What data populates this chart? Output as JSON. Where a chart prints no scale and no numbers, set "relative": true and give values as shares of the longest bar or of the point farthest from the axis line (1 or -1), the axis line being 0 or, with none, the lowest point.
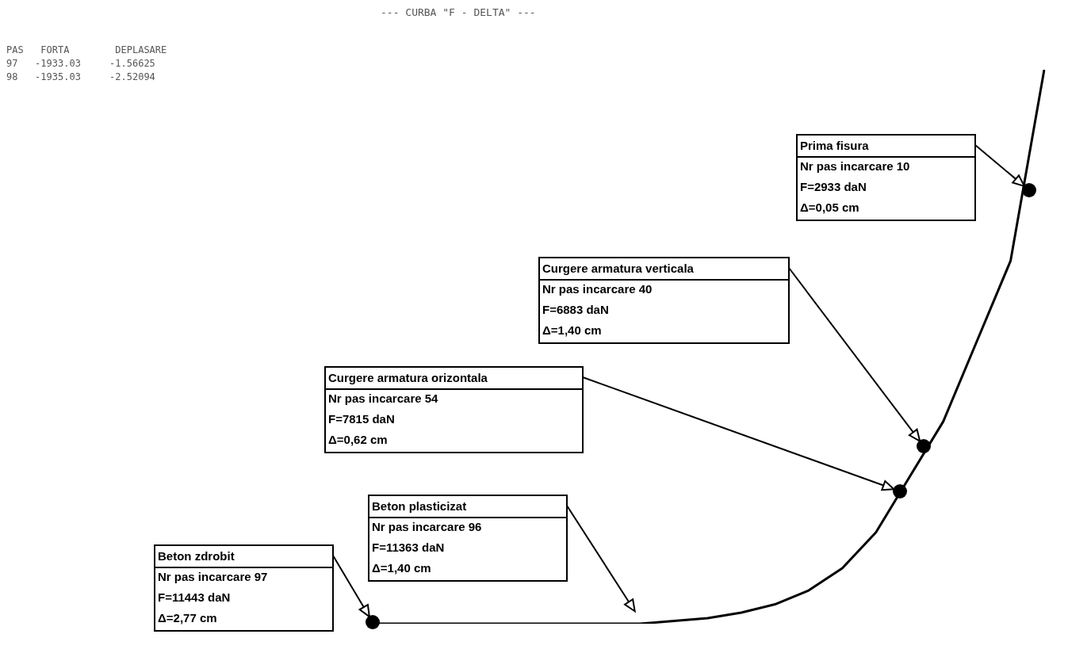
{
  "chart_data": {
    "type": "line",
    "title": "--- CURBA \"F - DELTA\" ---",
    "relative": true,
    "legend": false,
    "marker": "none",
    "categories": [
      null,
      null,
      null,
      null,
      null,
      null,
      null,
      null,
      null,
      null,
      null,
      null,
      null,
      null,
      null,
      null,
      null,
      null,
      null,
      null,
      null
    ],
    "series": [
      {
        "color": "#000000",
        "values": [
          0,
          0,
          0,
          0,
          0,
          0,
          0,
          0,
          0,
          0.005,
          0.01,
          0.02,
          0.035,
          0.06,
          0.1,
          0.165,
          0.265,
          0.365,
          0.51,
          0.655,
          1
        ]
      }
    ],
    "annotations": [
      "Prima fisura\nNr pas incarcare 10\nF=2933 daN\nΔ=0,05 cm",
      "Curgere armatura verticala\nNr pas incarcare 40\nF=6883 daN\nΔ=1,40 cm",
      "Curgere armatura orizontala\nNr pas incarcare 54\nF=7815 daN\nΔ=0,62 cm",
      "Beton plasticizat\nNr pas incarcare 96\nF=11363 daN\nΔ=1,40 cm",
      "Beton zdrobit\nNr pas incarcare 97\nF=11443 daN\nΔ=2,77 cm",
      "PAS   FORTA        DEPLASARE\n97   -1933.03     -1.56625\n98   -1935.03     -2.52094"
    ]
  }
}
